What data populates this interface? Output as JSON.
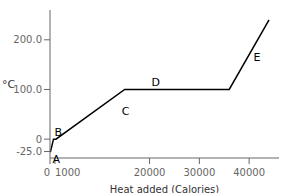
{
  "chart_data": {
    "type": "line",
    "xlabel": "Heat added (Calories)",
    "ylabel": "°C",
    "x": [
      0,
      100,
      700,
      1200,
      15000,
      27000,
      36000,
      44000
    ],
    "values": [
      -25,
      -25,
      0,
      0,
      100,
      100,
      100,
      240
    ],
    "color": "#000000",
    "xlim": [
      0,
      46000
    ],
    "ylim": [
      -38,
      260
    ],
    "xticks": [
      0,
      1000,
      20000,
      30000,
      40000
    ],
    "yticks": [
      {
        "value": -25.0,
        "label": "-25.0"
      },
      0,
      {
        "value": 100.0,
        "label": "100.0"
      },
      {
        "value": 200.0,
        "label": "200.0"
      }
    ],
    "annotations": [
      {
        "x": 80,
        "y": -27,
        "text": "A"
      },
      {
        "x": 480,
        "y": 2,
        "text": "B"
      },
      {
        "x": 14000,
        "y": 68,
        "text": "C"
      },
      {
        "x": 20000,
        "y": 103,
        "text": "D"
      },
      {
        "x": 40500,
        "y": 178,
        "text": "E"
      }
    ],
    "grid": false
  }
}
